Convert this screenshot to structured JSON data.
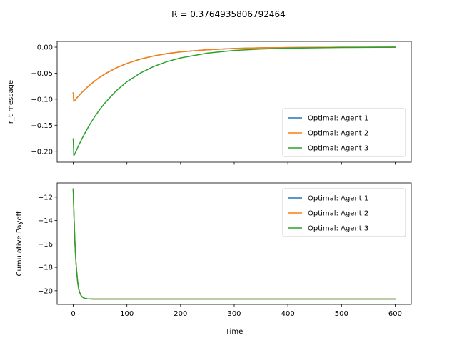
{
  "figure": {
    "suptitle": "R = 0.3764935806792464"
  },
  "chart_data": [
    {
      "type": "line",
      "panel": "top",
      "title": "",
      "xlabel": "",
      "ylabel": "r_t message",
      "xlim": [
        -30,
        630
      ],
      "ylim": [
        -0.221,
        0.011
      ],
      "xticks": [
        0,
        100,
        200,
        300,
        400,
        500,
        600
      ],
      "show_xtick_labels": false,
      "yticks": [
        0.0,
        -0.05,
        -0.1,
        -0.15,
        -0.2
      ],
      "ytick_labels": [
        "0.00",
        "−0.05",
        "−0.10",
        "−0.15",
        "−0.20"
      ],
      "grid": false,
      "legend_position": "lower-right",
      "series": [
        {
          "name": "Optimal: Agent 1",
          "color": "#1f77b4",
          "x": [
            0,
            1,
            2,
            4,
            6,
            8,
            10,
            15,
            20,
            30,
            40,
            50,
            60,
            80,
            100,
            125,
            150,
            175,
            200,
            250,
            300,
            350,
            400,
            500,
            600
          ],
          "y": [
            -0.088,
            -0.104,
            -0.1035,
            -0.1009,
            -0.0985,
            -0.0961,
            -0.0938,
            -0.0882,
            -0.083,
            -0.0734,
            -0.065,
            -0.0575,
            -0.0509,
            -0.0399,
            -0.0313,
            -0.023,
            -0.0169,
            -0.0124,
            -0.0091,
            -0.0049,
            -0.0026,
            -0.0014,
            -0.0008,
            -0.0002,
            0.0
          ]
        },
        {
          "name": "Optimal: Agent 2",
          "color": "#ff7f0e",
          "x": [
            0,
            1,
            2,
            4,
            6,
            8,
            10,
            15,
            20,
            30,
            40,
            50,
            60,
            80,
            100,
            125,
            150,
            175,
            200,
            250,
            300,
            350,
            400,
            500,
            600
          ],
          "y": [
            -0.088,
            -0.104,
            -0.1035,
            -0.1009,
            -0.0985,
            -0.0961,
            -0.0938,
            -0.0882,
            -0.083,
            -0.0734,
            -0.065,
            -0.0575,
            -0.0509,
            -0.0399,
            -0.0313,
            -0.023,
            -0.0169,
            -0.0124,
            -0.0091,
            -0.0049,
            -0.0026,
            -0.0014,
            -0.0008,
            -0.0002,
            0.0
          ]
        },
        {
          "name": "Optimal: Agent 3",
          "color": "#2ca02c",
          "x": [
            0,
            1,
            2,
            4,
            6,
            8,
            10,
            15,
            20,
            30,
            40,
            50,
            60,
            80,
            100,
            125,
            150,
            175,
            200,
            250,
            300,
            350,
            400,
            500,
            600
          ],
          "y": [
            -0.176,
            -0.208,
            -0.207,
            -0.2025,
            -0.198,
            -0.1935,
            -0.189,
            -0.1785,
            -0.1685,
            -0.15,
            -0.1335,
            -0.119,
            -0.106,
            -0.0838,
            -0.0665,
            -0.0498,
            -0.0371,
            -0.0277,
            -0.0207,
            -0.0115,
            -0.0064,
            -0.0036,
            -0.002,
            -0.0006,
            -0.0002
          ]
        }
      ]
    },
    {
      "type": "line",
      "panel": "bottom",
      "title": "",
      "xlabel": "Time",
      "ylabel": "Cumulative Payoff",
      "xlim": [
        -30,
        630
      ],
      "ylim": [
        -21.17,
        -10.79
      ],
      "xticks": [
        0,
        100,
        200,
        300,
        400,
        500,
        600
      ],
      "xtick_labels": [
        "0",
        "100",
        "200",
        "300",
        "400",
        "500",
        "600"
      ],
      "yticks": [
        -12,
        -14,
        -16,
        -18,
        -20
      ],
      "ytick_labels": [
        "−12",
        "−14",
        "−16",
        "−18",
        "−20"
      ],
      "grid": false,
      "legend_position": "upper-right",
      "series": [
        {
          "name": "Optimal: Agent 1",
          "color": "#1f77b4",
          "x": [
            0,
            1,
            2,
            3,
            4,
            5,
            6,
            8,
            10,
            12,
            15,
            18,
            22,
            26,
            30,
            40,
            60,
            100,
            200,
            400,
            600
          ],
          "y": [
            -11.3,
            -13.0,
            -14.5,
            -15.7,
            -16.7,
            -17.5,
            -18.15,
            -19.15,
            -19.8,
            -20.15,
            -20.45,
            -20.58,
            -20.66,
            -20.69,
            -20.7,
            -20.71,
            -20.71,
            -20.71,
            -20.71,
            -20.71,
            -20.71
          ]
        },
        {
          "name": "Optimal: Agent 2",
          "color": "#ff7f0e",
          "x": [
            0,
            1,
            2,
            3,
            4,
            5,
            6,
            8,
            10,
            12,
            15,
            18,
            22,
            26,
            30,
            40,
            60,
            100,
            200,
            400,
            600
          ],
          "y": [
            -11.3,
            -13.0,
            -14.5,
            -15.7,
            -16.7,
            -17.5,
            -18.15,
            -19.15,
            -19.8,
            -20.15,
            -20.45,
            -20.58,
            -20.66,
            -20.69,
            -20.7,
            -20.71,
            -20.71,
            -20.71,
            -20.71,
            -20.71,
            -20.71
          ]
        },
        {
          "name": "Optimal: Agent 3",
          "color": "#2ca02c",
          "x": [
            0,
            1,
            2,
            3,
            4,
            5,
            6,
            8,
            10,
            12,
            15,
            18,
            22,
            26,
            30,
            40,
            60,
            100,
            200,
            400,
            600
          ],
          "y": [
            -11.3,
            -13.0,
            -14.5,
            -15.7,
            -16.7,
            -17.5,
            -18.15,
            -19.15,
            -19.8,
            -20.15,
            -20.45,
            -20.58,
            -20.66,
            -20.69,
            -20.7,
            -20.71,
            -20.71,
            -20.71,
            -20.71,
            -20.71,
            -20.71
          ]
        }
      ]
    }
  ]
}
